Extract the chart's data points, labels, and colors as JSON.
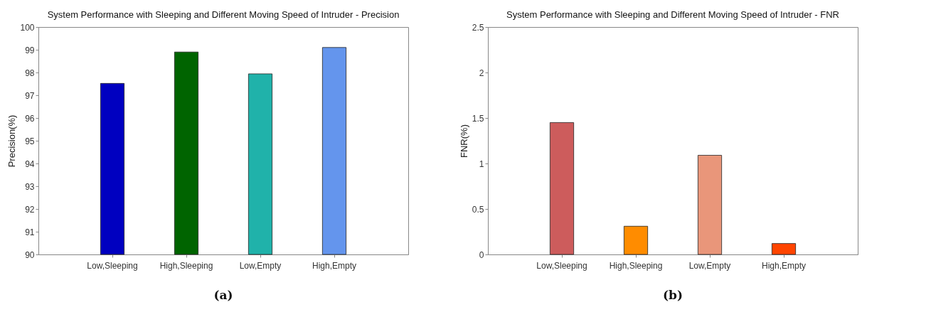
{
  "chart_data": [
    {
      "type": "bar",
      "title": "System Performance with Sleeping and Different Moving Speed of Intruder - Precision",
      "ylabel": "Precision(%)",
      "categories": [
        "Low,Sleeping",
        "High,Sleeping",
        "Low,Empty",
        "High,Empty"
      ],
      "values": [
        97.52,
        98.9,
        97.94,
        99.1
      ],
      "colors": [
        "#0000c0",
        "#006400",
        "#20b2aa",
        "#6495ed"
      ],
      "ylim": [
        90,
        100
      ],
      "yticks": [
        90,
        91,
        92,
        93,
        94,
        95,
        96,
        97,
        98,
        99,
        100
      ],
      "annotations": [
        "(a)"
      ]
    },
    {
      "type": "bar",
      "title": "System Performance with Sleeping and Different Moving Speed of Intruder - FNR",
      "ylabel": "FNR(%)",
      "categories": [
        "Low,Sleeping",
        "High,Sleeping",
        "Low,Empty",
        "High,Empty"
      ],
      "values": [
        1.45,
        0.31,
        1.09,
        0.12
      ],
      "colors": [
        "#cd5c5c",
        "#ff8c00",
        "#e9967a",
        "#ff4500"
      ],
      "ylim": [
        0,
        2.5
      ],
      "yticks": [
        0,
        0.5,
        1,
        1.5,
        2,
        2.5
      ],
      "annotations": [
        "(b)"
      ]
    }
  ]
}
